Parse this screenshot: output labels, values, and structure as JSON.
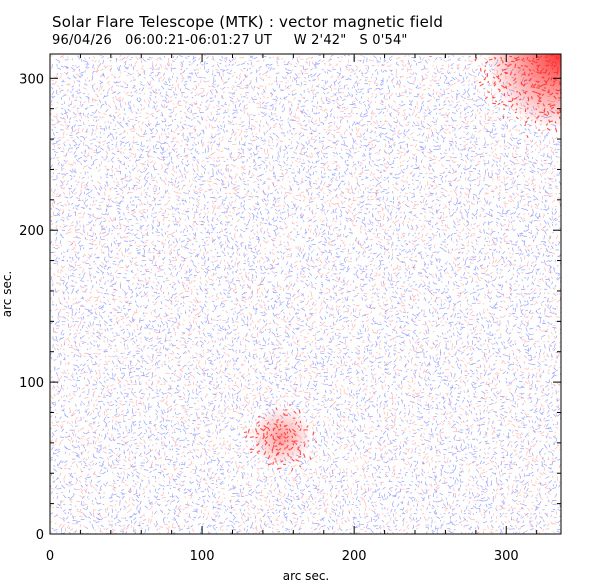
{
  "chart_data": {
    "type": "heatmap",
    "title": "Solar Flare Telescope (MTK) : vector magnetic field",
    "subtitle": "96/04/26   06:00:21-06:01:27 UT     W 2'42\"   S 0'54\"",
    "xlabel": "arc sec.",
    "ylabel": "arc sec.",
    "xlim": [
      0,
      336
    ],
    "ylim": [
      0,
      316
    ],
    "x_ticks": [
      0,
      100,
      200,
      300
    ],
    "y_ticks": [
      0,
      100,
      200,
      300
    ],
    "colors": {
      "positive": "#ff2a2a",
      "negative": "#3344ff",
      "background": "#ffffff"
    },
    "hotspots": [
      {
        "x": 336,
        "y": 316,
        "polarity": "positive",
        "strength": "strong"
      },
      {
        "x": 152,
        "y": 64,
        "polarity": "positive",
        "strength": "moderate"
      }
    ]
  }
}
